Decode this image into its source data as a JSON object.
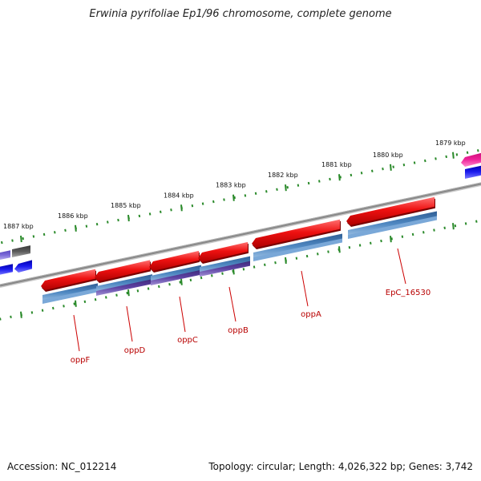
{
  "title": "Erwinia pyrifoliae Ep1/96 chromosome, complete genome",
  "accession": "Accession: NC_012214",
  "summary": "Topology: circular; Length: 4,026,322 bp; Genes: 3,742",
  "ticks": [
    {
      "label": "1879 kbp"
    },
    {
      "label": "1880 kbp"
    },
    {
      "label": "1881 kbp"
    },
    {
      "label": "1882 kbp"
    },
    {
      "label": "1883 kbp"
    },
    {
      "label": "1884 kbp"
    },
    {
      "label": "1885 kbp"
    },
    {
      "label": "1886 kbp"
    },
    {
      "label": "1887 kbp"
    }
  ],
  "genes": [
    {
      "name": "oppF",
      "strand": "minus"
    },
    {
      "name": "oppD",
      "strand": "minus"
    },
    {
      "name": "oppC",
      "strand": "minus"
    },
    {
      "name": "oppB",
      "strand": "minus"
    },
    {
      "name": "oppA",
      "strand": "minus"
    },
    {
      "name": "EpC_16530",
      "strand": "minus"
    }
  ],
  "colors": {
    "gene_arrow": "#ee1111",
    "cds_bar": "#4a80b8",
    "cds_bar_purple": "#5a3f9a",
    "backbone": "#888888",
    "tick": "#2a8a2a",
    "label": "#b80000",
    "magenta": "#ee2299",
    "blue": "#1a1aee"
  }
}
